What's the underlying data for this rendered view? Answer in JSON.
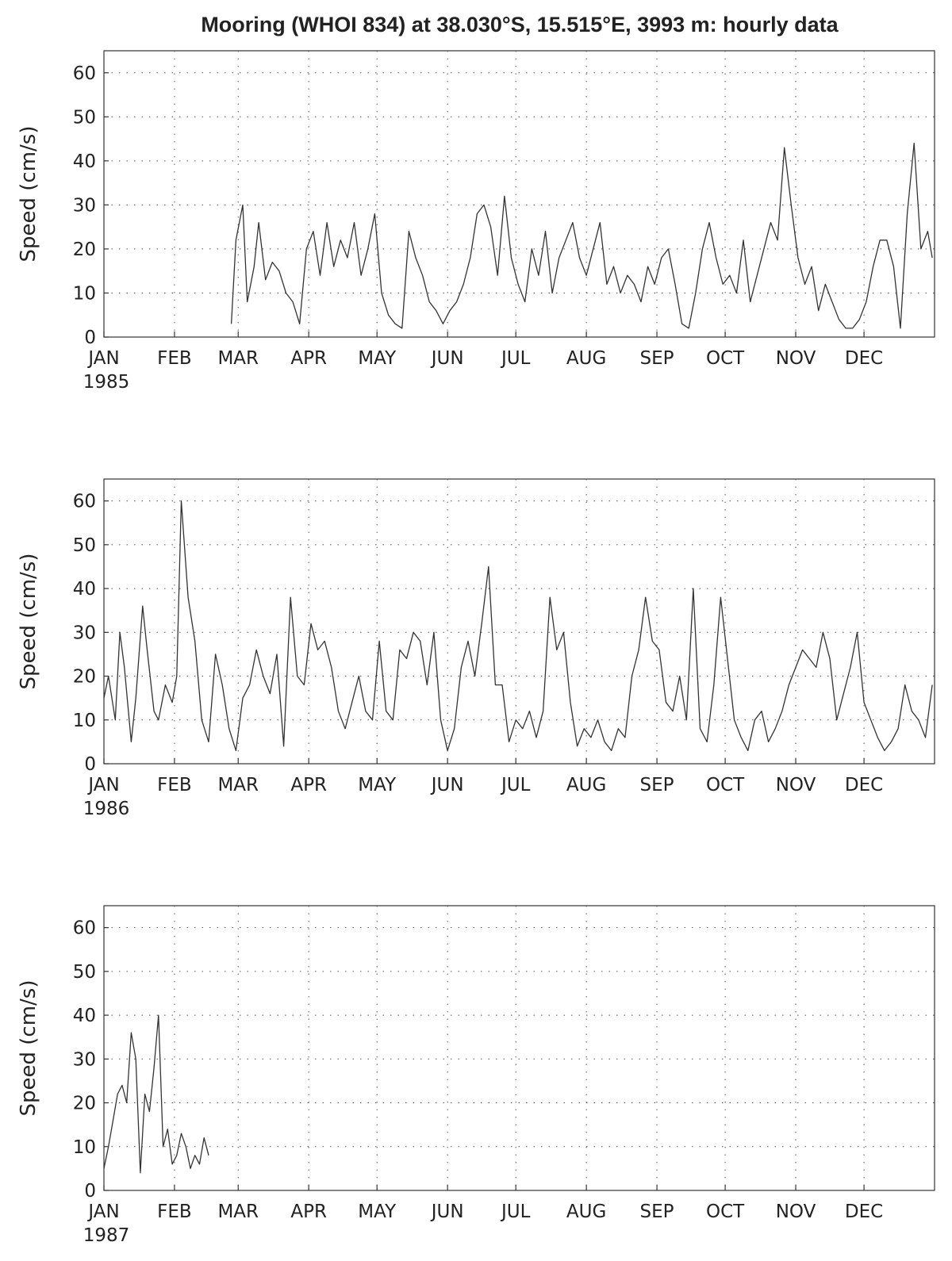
{
  "title": "Mooring (WHOI 834) at 38.030°S, 15.515°E, 3993 m: hourly data",
  "chart_data": [
    {
      "type": "line",
      "year_label": "1985",
      "ylabel": "Speed (cm/s)",
      "ylim": [
        0,
        65
      ],
      "yticks": [
        0,
        10,
        20,
        30,
        40,
        50,
        60
      ],
      "xlim": [
        "1985-01-01",
        "1986-01-01"
      ],
      "xtick_labels": [
        "JAN",
        "FEB",
        "MAR",
        "APR",
        "MAY",
        "JUN",
        "JUL",
        "AUG",
        "SEP",
        "OCT",
        "NOV",
        "DEC"
      ],
      "grid": true,
      "color": "#333333",
      "series": [
        {
          "x": [
            "1985-02-26",
            "1985-02-28",
            "1985-03-03",
            "1985-03-05",
            "1985-03-08",
            "1985-03-10",
            "1985-03-13",
            "1985-03-16",
            "1985-03-19",
            "1985-03-22",
            "1985-03-25",
            "1985-03-28",
            "1985-03-31",
            "1985-04-03",
            "1985-04-06",
            "1985-04-09",
            "1985-04-12",
            "1985-04-15",
            "1985-04-18",
            "1985-04-21",
            "1985-04-24",
            "1985-04-27",
            "1985-04-30",
            "1985-05-03",
            "1985-05-06",
            "1985-05-09",
            "1985-05-12",
            "1985-05-15",
            "1985-05-18",
            "1985-05-21",
            "1985-05-24",
            "1985-05-27",
            "1985-05-30",
            "1985-06-02",
            "1985-06-05",
            "1985-06-08",
            "1985-06-11",
            "1985-06-14",
            "1985-06-17",
            "1985-06-20",
            "1985-06-23",
            "1985-06-26",
            "1985-06-29",
            "1985-07-02",
            "1985-07-05",
            "1985-07-08",
            "1985-07-11",
            "1985-07-14",
            "1985-07-17",
            "1985-07-20",
            "1985-07-23",
            "1985-07-26",
            "1985-07-29",
            "1985-08-01",
            "1985-08-04",
            "1985-08-07",
            "1985-08-10",
            "1985-08-13",
            "1985-08-16",
            "1985-08-19",
            "1985-08-22",
            "1985-08-25",
            "1985-08-28",
            "1985-08-31",
            "1985-09-03",
            "1985-09-06",
            "1985-09-09",
            "1985-09-12",
            "1985-09-15",
            "1985-09-18",
            "1985-09-21",
            "1985-09-24",
            "1985-09-27",
            "1985-09-30",
            "1985-10-03",
            "1985-10-06",
            "1985-10-09",
            "1985-10-12",
            "1985-10-15",
            "1985-10-18",
            "1985-10-21",
            "1985-10-24",
            "1985-10-27",
            "1985-10-30",
            "1985-11-02",
            "1985-11-05",
            "1985-11-08",
            "1985-11-11",
            "1985-11-14",
            "1985-11-17",
            "1985-11-20",
            "1985-11-23",
            "1985-11-26",
            "1985-11-29",
            "1985-12-02",
            "1985-12-05",
            "1985-12-08",
            "1985-12-11",
            "1985-12-14",
            "1985-12-17",
            "1985-12-20",
            "1985-12-23",
            "1985-12-26",
            "1985-12-29",
            "1985-12-31"
          ],
          "y": [
            3,
            22,
            30,
            8,
            16,
            26,
            13,
            17,
            15,
            10,
            8,
            3,
            20,
            24,
            14,
            26,
            16,
            22,
            18,
            26,
            14,
            20,
            28,
            10,
            5,
            3,
            2,
            24,
            18,
            14,
            8,
            6,
            3,
            6,
            8,
            12,
            18,
            28,
            30,
            25,
            14,
            32,
            18,
            12,
            8,
            20,
            14,
            24,
            10,
            18,
            22,
            26,
            18,
            14,
            20,
            26,
            12,
            16,
            10,
            14,
            12,
            8,
            16,
            12,
            18,
            20,
            12,
            3,
            2,
            10,
            20,
            26,
            18,
            12,
            14,
            10,
            22,
            8,
            14,
            20,
            26,
            22,
            43,
            30,
            18,
            12,
            16,
            6,
            12,
            8,
            4,
            2,
            2,
            4,
            8,
            16,
            22,
            22,
            16,
            2,
            28,
            44,
            20,
            24,
            18
          ]
        }
      ]
    },
    {
      "type": "line",
      "year_label": "1986",
      "ylabel": "Speed (cm/s)",
      "ylim": [
        0,
        65
      ],
      "yticks": [
        0,
        10,
        20,
        30,
        40,
        50,
        60
      ],
      "xlim": [
        "1986-01-01",
        "1987-01-01"
      ],
      "xtick_labels": [
        "JAN",
        "FEB",
        "MAR",
        "APR",
        "MAY",
        "JUN",
        "JUL",
        "AUG",
        "SEP",
        "OCT",
        "NOV",
        "DEC"
      ],
      "grid": true,
      "color": "#333333",
      "series": [
        {
          "x": [
            "1986-01-01",
            "1986-01-03",
            "1986-01-06",
            "1986-01-08",
            "1986-01-10",
            "1986-01-13",
            "1986-01-15",
            "1986-01-18",
            "1986-01-20",
            "1986-01-23",
            "1986-01-25",
            "1986-01-28",
            "1986-01-31",
            "1986-02-02",
            "1986-02-04",
            "1986-02-07",
            "1986-02-10",
            "1986-02-13",
            "1986-02-16",
            "1986-02-19",
            "1986-02-22",
            "1986-02-25",
            "1986-02-28",
            "1986-03-03",
            "1986-03-06",
            "1986-03-09",
            "1986-03-12",
            "1986-03-15",
            "1986-03-18",
            "1986-03-21",
            "1986-03-24",
            "1986-03-27",
            "1986-03-30",
            "1986-04-02",
            "1986-04-05",
            "1986-04-08",
            "1986-04-11",
            "1986-04-14",
            "1986-04-17",
            "1986-04-20",
            "1986-04-23",
            "1986-04-26",
            "1986-04-29",
            "1986-05-02",
            "1986-05-05",
            "1986-05-08",
            "1986-05-11",
            "1986-05-14",
            "1986-05-17",
            "1986-05-20",
            "1986-05-23",
            "1986-05-26",
            "1986-05-29",
            "1986-06-01",
            "1986-06-04",
            "1986-06-07",
            "1986-06-10",
            "1986-06-13",
            "1986-06-16",
            "1986-06-19",
            "1986-06-22",
            "1986-06-25",
            "1986-06-28",
            "1986-07-01",
            "1986-07-04",
            "1986-07-07",
            "1986-07-10",
            "1986-07-13",
            "1986-07-16",
            "1986-07-19",
            "1986-07-22",
            "1986-07-25",
            "1986-07-28",
            "1986-07-31",
            "1986-08-03",
            "1986-08-06",
            "1986-08-09",
            "1986-08-12",
            "1986-08-15",
            "1986-08-18",
            "1986-08-21",
            "1986-08-24",
            "1986-08-27",
            "1986-08-30",
            "1986-09-02",
            "1986-09-05",
            "1986-09-08",
            "1986-09-11",
            "1986-09-14",
            "1986-09-17",
            "1986-09-20",
            "1986-09-23",
            "1986-09-26",
            "1986-09-29",
            "1986-10-02",
            "1986-10-05",
            "1986-10-08",
            "1986-10-11",
            "1986-10-14",
            "1986-10-17",
            "1986-10-20",
            "1986-10-23",
            "1986-10-26",
            "1986-10-29",
            "1986-11-01",
            "1986-11-04",
            "1986-11-07",
            "1986-11-10",
            "1986-11-13",
            "1986-11-16",
            "1986-11-19",
            "1986-11-22",
            "1986-11-25",
            "1986-11-28",
            "1986-12-01",
            "1986-12-04",
            "1986-12-07",
            "1986-12-10",
            "1986-12-13",
            "1986-12-16",
            "1986-12-19",
            "1986-12-22",
            "1986-12-25",
            "1986-12-28",
            "1986-12-31"
          ],
          "y": [
            15,
            20,
            10,
            30,
            22,
            5,
            15,
            36,
            26,
            12,
            10,
            18,
            14,
            20,
            60,
            38,
            28,
            10,
            5,
            25,
            18,
            8,
            3,
            15,
            18,
            26,
            20,
            16,
            25,
            4,
            38,
            20,
            18,
            32,
            26,
            28,
            22,
            12,
            8,
            14,
            20,
            12,
            10,
            28,
            12,
            10,
            26,
            24,
            30,
            28,
            18,
            30,
            10,
            3,
            8,
            22,
            28,
            20,
            32,
            45,
            18,
            18,
            5,
            10,
            8,
            12,
            6,
            12,
            38,
            26,
            30,
            14,
            4,
            8,
            6,
            10,
            5,
            3,
            8,
            6,
            20,
            26,
            38,
            28,
            26,
            14,
            12,
            20,
            10,
            40,
            8,
            5,
            18,
            38,
            24,
            10,
            6,
            3,
            10,
            12,
            5,
            8,
            12,
            18,
            22,
            26,
            24,
            22,
            30,
            24,
            10,
            16,
            22,
            30,
            14,
            10,
            6,
            3,
            5,
            8,
            18,
            12,
            10,
            6,
            18
          ]
        }
      ]
    },
    {
      "type": "line",
      "year_label": "1987",
      "ylabel": "Speed (cm/s)",
      "ylim": [
        0,
        65
      ],
      "yticks": [
        0,
        10,
        20,
        30,
        40,
        50,
        60
      ],
      "xlim": [
        "1987-01-01",
        "1988-01-01"
      ],
      "xtick_labels": [
        "JAN",
        "FEB",
        "MAR",
        "APR",
        "MAY",
        "JUN",
        "JUL",
        "AUG",
        "SEP",
        "OCT",
        "NOV",
        "DEC"
      ],
      "grid": true,
      "color": "#333333",
      "series": [
        {
          "x": [
            "1987-01-01",
            "1987-01-03",
            "1987-01-05",
            "1987-01-07",
            "1987-01-09",
            "1987-01-11",
            "1987-01-13",
            "1987-01-15",
            "1987-01-17",
            "1987-01-19",
            "1987-01-21",
            "1987-01-23",
            "1987-01-25",
            "1987-01-27",
            "1987-01-29",
            "1987-01-31",
            "1987-02-02",
            "1987-02-04",
            "1987-02-06",
            "1987-02-08",
            "1987-02-10",
            "1987-02-12",
            "1987-02-14",
            "1987-02-16"
          ],
          "y": [
            5,
            10,
            16,
            22,
            24,
            20,
            36,
            30,
            4,
            22,
            18,
            28,
            40,
            10,
            14,
            6,
            8,
            13,
            10,
            5,
            8,
            6,
            12,
            8
          ]
        }
      ]
    }
  ]
}
